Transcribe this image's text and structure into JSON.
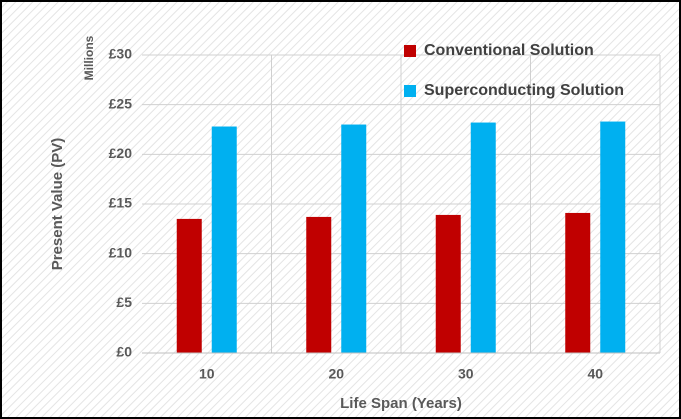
{
  "chart_data": {
    "type": "bar",
    "categories": [
      "10",
      "20",
      "30",
      "40"
    ],
    "series": [
      {
        "name": "Conventional Solution",
        "color": "#c00000",
        "values": [
          13.5,
          13.7,
          13.9,
          14.1
        ]
      },
      {
        "name": "Superconducting Solution",
        "color": "#00b0f0",
        "values": [
          22.8,
          23.0,
          23.2,
          23.3
        ]
      }
    ],
    "ylim": [
      0,
      30
    ],
    "yticks": [
      {
        "value": 0,
        "label": "£0"
      },
      {
        "value": 5,
        "label": "£5"
      },
      {
        "value": 10,
        "label": "£10"
      },
      {
        "value": 15,
        "label": "£15"
      },
      {
        "value": 20,
        "label": "£20"
      },
      {
        "value": 25,
        "label": "£25"
      },
      {
        "value": 30,
        "label": "£30"
      }
    ],
    "y_unit_label": "Millions",
    "ylabel": "Present Value (PV)",
    "xlabel": "Life Span (Years)",
    "grid": true,
    "legend": "top-right"
  }
}
